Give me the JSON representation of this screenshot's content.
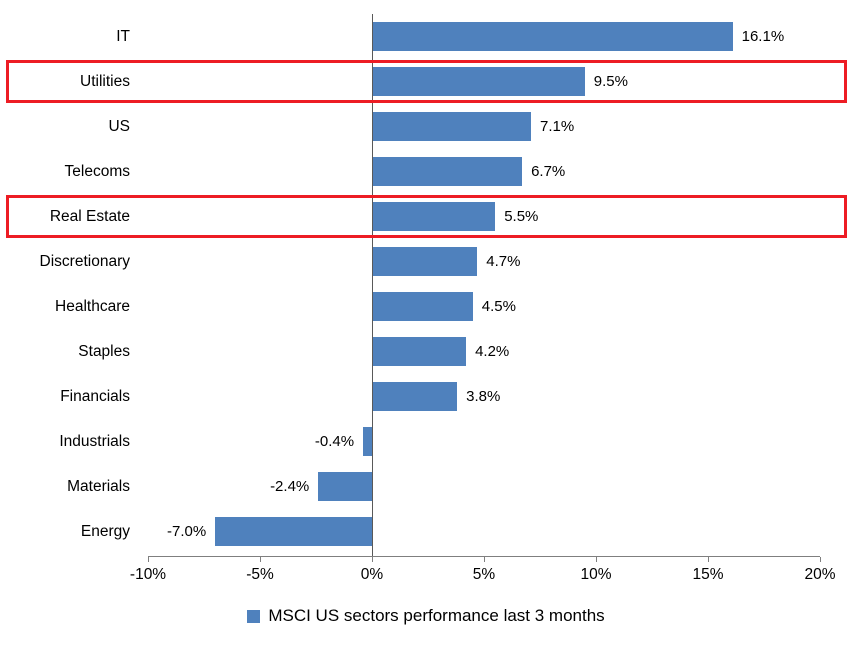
{
  "chart_data": {
    "type": "bar",
    "orientation": "horizontal",
    "title": "",
    "categories": [
      "IT",
      "Utilities",
      "US",
      "Telecoms",
      "Real Estate",
      "Discretionary",
      "Healthcare",
      "Staples",
      "Financials",
      "Industrials",
      "Materials",
      "Energy"
    ],
    "values": [
      16.1,
      9.5,
      7.1,
      6.7,
      5.5,
      4.7,
      4.5,
      4.2,
      3.8,
      -0.4,
      -2.4,
      -7.0
    ],
    "value_labels": [
      "16.1%",
      "9.5%",
      "7.1%",
      "6.7%",
      "5.5%",
      "4.7%",
      "4.5%",
      "4.2%",
      "3.8%",
      "-0.4%",
      "-2.4%",
      "-7.0%"
    ],
    "highlighted": [
      "Utilities",
      "Real Estate"
    ],
    "xlim": [
      -10,
      20
    ],
    "x_tick_values": [
      -10,
      -5,
      0,
      5,
      10,
      15,
      20
    ],
    "x_ticks": [
      "-10%",
      "-5%",
      "0%",
      "5%",
      "10%",
      "15%",
      "20%"
    ],
    "grid": false,
    "legend": "MSCI US sectors performance last 3 months",
    "legend_position": "bottom",
    "bar_color": "#4F81BD",
    "highlight_color": "#ED1C24",
    "axis_color": "#7F7F7F"
  }
}
